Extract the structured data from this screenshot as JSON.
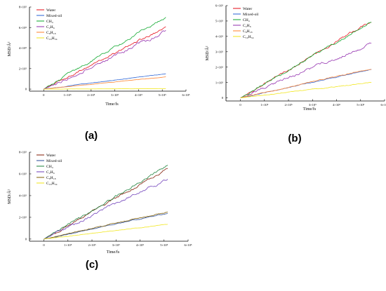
{
  "chart_data": [
    {
      "type": "line",
      "panel_label": "(a)",
      "xlabel": "Time/fs",
      "ylabel": "MSD/Å²",
      "xlim": [
        -60000,
        600000
      ],
      "ylim": [
        -20000,
        800000
      ],
      "x_ticks": [
        0,
        100000,
        200000,
        300000,
        400000,
        500000,
        600000
      ],
      "x_tick_labels": [
        "0",
        "1×10⁵",
        "2×10⁵",
        "3×10⁵",
        "4×10⁵",
        "5×10⁵",
        "6×10⁵"
      ],
      "y_ticks": [
        0,
        200000,
        400000,
        600000,
        800000
      ],
      "y_tick_labels": [
        "0",
        "2×10⁵",
        "4×10⁵",
        "6×10⁵",
        "8×10⁵"
      ],
      "legend_position": "top-left",
      "x_end": 515000,
      "series": [
        {
          "name": "Water",
          "color": "#e8202a",
          "end_value": 605000,
          "noise": 12000
        },
        {
          "name": "Mixed-oil",
          "color": "#3a6fd8",
          "end_value": 150000,
          "noise": 3000
        },
        {
          "name": "CH₄",
          "color": "#1fae3c",
          "end_value": 700000,
          "noise": 14000
        },
        {
          "name": "C₂H₆",
          "color": "#9b3fb5",
          "end_value": 560000,
          "noise": 18000
        },
        {
          "name": "C₈H₁₈",
          "color": "#ff8a3d",
          "end_value": 120000,
          "noise": 2000
        },
        {
          "name": "C₁₆H₃₄",
          "color": "#f2e82b",
          "end_value": 5000,
          "noise": 800
        }
      ]
    },
    {
      "type": "line",
      "panel_label": "(b)",
      "xlabel": "Time/fs",
      "ylabel": "MSD/Å²",
      "xlim": [
        -60000,
        600000
      ],
      "ylim": [
        -20000,
        600000
      ],
      "x_ticks": [
        0,
        100000,
        200000,
        300000,
        400000,
        500000,
        600000
      ],
      "x_tick_labels": [
        "0",
        "1×10⁵",
        "2×10⁵",
        "3×10⁵",
        "4×10⁵",
        "5×10⁵",
        "6×10⁵"
      ],
      "y_ticks": [
        0,
        100000,
        200000,
        300000,
        400000,
        500000,
        600000
      ],
      "y_tick_labels": [
        "0",
        "1×10⁵",
        "2×10⁵",
        "3×10⁵",
        "4×10⁵",
        "5×10⁵",
        "6×10⁵"
      ],
      "legend_position": "top-left",
      "x_end": 545000,
      "series": [
        {
          "name": "Water",
          "color": "#e8202a",
          "end_value": 500000,
          "noise": 9000
        },
        {
          "name": "Mixed-oil",
          "color": "#3a6fd8",
          "end_value": 185000,
          "noise": 3500
        },
        {
          "name": "CH₄",
          "color": "#1fae3c",
          "end_value": 495000,
          "noise": 10000
        },
        {
          "name": "C₂H₆",
          "color": "#9b3fb5",
          "end_value": 355000,
          "noise": 12000
        },
        {
          "name": "C₈H₁₈",
          "color": "#ff8a3d",
          "end_value": 190000,
          "noise": 4000
        },
        {
          "name": "C₁₆H₃₄",
          "color": "#f2e82b",
          "end_value": 100000,
          "noise": 3000
        }
      ]
    },
    {
      "type": "line",
      "panel_label": "(c)",
      "xlabel": "Time/fs",
      "ylabel": "MSD/Å²",
      "xlim": [
        -60000,
        600000
      ],
      "ylim": [
        -20000,
        800000
      ],
      "x_ticks": [
        0,
        100000,
        200000,
        300000,
        400000,
        500000,
        600000
      ],
      "x_tick_labels": [
        "0",
        "1×10⁵",
        "2×10⁵",
        "3×10⁵",
        "4×10⁵",
        "5×10⁵",
        "6×10⁵"
      ],
      "y_ticks": [
        0,
        200000,
        400000,
        600000,
        800000
      ],
      "y_tick_labels": [
        "0",
        "2×10⁵",
        "4×10⁵",
        "6×10⁵",
        "8×10⁵"
      ],
      "legend_position": "top-left",
      "x_end": 515000,
      "series": [
        {
          "name": "Water",
          "color": "#8b2e1a",
          "end_value": 645000,
          "noise": 12000
        },
        {
          "name": "Mixed-oil",
          "color": "#3a5aa0",
          "end_value": 240000,
          "noise": 5000
        },
        {
          "name": "CH₄",
          "color": "#2e8b4a",
          "end_value": 680000,
          "noise": 14000
        },
        {
          "name": "C₂H₆",
          "color": "#7b4fc0",
          "end_value": 555000,
          "noise": 16000
        },
        {
          "name": "C₈H₁₈",
          "color": "#8a6b1a",
          "end_value": 250000,
          "noise": 5000
        },
        {
          "name": "C₁₆H₃₄",
          "color": "#f2e82b",
          "end_value": 135000,
          "noise": 3000
        }
      ]
    }
  ]
}
